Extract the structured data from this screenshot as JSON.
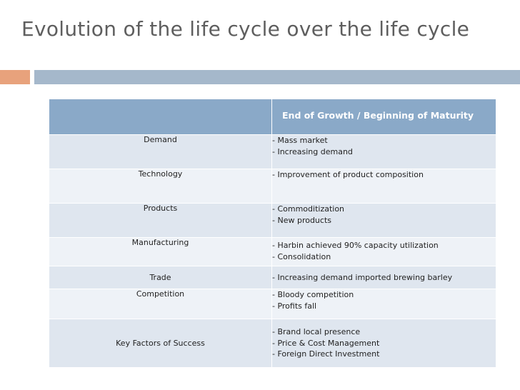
{
  "slide": {
    "title": "Evolution of the life cycle over the life cycle",
    "accent_colors": {
      "orange": "#e8a27c",
      "blue": "#a5b8cb",
      "header": "#8aa9c8"
    }
  },
  "table": {
    "header": {
      "col1": "",
      "col2": "End of Growth / Beginning of Maturity"
    },
    "rows": [
      {
        "factor": "Demand",
        "details": [
          "- Mass market",
          "- Increasing demand"
        ]
      },
      {
        "factor": "Technology",
        "details": [
          "- Improvement of product composition"
        ]
      },
      {
        "factor": "Products",
        "details": [
          "- Commoditization",
          "- New products"
        ]
      },
      {
        "factor": "Manufacturing",
        "details": [
          "- Harbin achieved 90% capacity utilization",
          "- Consolidation"
        ]
      },
      {
        "factor": "Trade",
        "details": [
          "- Increasing demand imported brewing barley"
        ]
      },
      {
        "factor": "Competition",
        "details": [
          "- Bloody competition",
          "- Profits fall"
        ]
      },
      {
        "factor": "Key Factors of Success",
        "details": [
          "- Brand local presence",
          "- Price & Cost Management",
          "- Foreign Direct Investment"
        ]
      }
    ]
  }
}
